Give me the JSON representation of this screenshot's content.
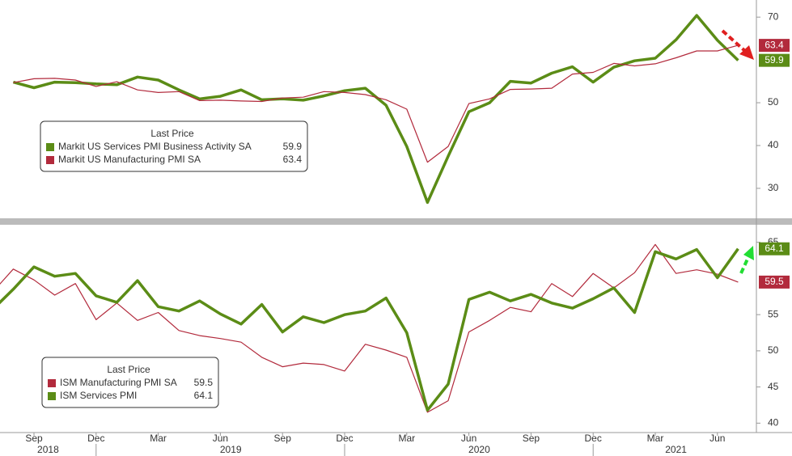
{
  "chart_data": [
    {
      "type": "line",
      "legend_title": "Last Price",
      "x": [
        "2018-07",
        "2018-08",
        "2018-09",
        "2018-10",
        "2018-11",
        "2018-12",
        "2019-01",
        "2019-02",
        "2019-03",
        "2019-04",
        "2019-05",
        "2019-06",
        "2019-07",
        "2019-08",
        "2019-09",
        "2019-10",
        "2019-11",
        "2019-12",
        "2020-01",
        "2020-02",
        "2020-03",
        "2020-04",
        "2020-05",
        "2020-06",
        "2020-07",
        "2020-08",
        "2020-09",
        "2020-10",
        "2020-11",
        "2020-12",
        "2021-01",
        "2021-02",
        "2021-03",
        "2021-04",
        "2021-05",
        "2021-06",
        "2021-07"
      ],
      "series": [
        {
          "name": "Markit US Services PMI Business Activity SA",
          "color": "#5b8c16",
          "width": 3.5,
          "values": [
            null,
            54.8,
            53.5,
            54.8,
            54.7,
            54.4,
            54.2,
            56.0,
            55.3,
            53.0,
            50.9,
            51.5,
            53.0,
            50.7,
            50.9,
            50.6,
            51.6,
            52.8,
            53.4,
            49.4,
            39.8,
            26.7,
            37.5,
            47.9,
            50.0,
            55.0,
            54.6,
            56.9,
            58.4,
            54.8,
            58.3,
            59.8,
            60.4,
            64.7,
            70.4,
            64.6,
            59.9
          ]
        },
        {
          "name": "Markit US Manufacturing PMI SA",
          "color": "#b22a3c",
          "width": 1.2,
          "values": [
            null,
            54.7,
            55.6,
            55.7,
            55.3,
            53.8,
            54.9,
            53.0,
            52.4,
            52.6,
            50.5,
            50.6,
            50.4,
            50.3,
            51.1,
            51.3,
            52.6,
            52.4,
            51.9,
            50.7,
            48.5,
            36.1,
            39.8,
            49.8,
            50.9,
            53.1,
            53.2,
            53.4,
            56.7,
            57.1,
            59.2,
            58.6,
            59.1,
            60.5,
            62.1,
            62.1,
            63.4
          ]
        }
      ],
      "ylim": [
        23,
        74
      ],
      "yticks": [
        30,
        40,
        50,
        70
      ]
    },
    {
      "type": "line",
      "legend_title": "Last Price",
      "x": [
        "2018-07",
        "2018-08",
        "2018-09",
        "2018-10",
        "2018-11",
        "2018-12",
        "2019-01",
        "2019-02",
        "2019-03",
        "2019-04",
        "2019-05",
        "2019-06",
        "2019-07",
        "2019-08",
        "2019-09",
        "2019-10",
        "2019-11",
        "2019-12",
        "2020-01",
        "2020-02",
        "2020-03",
        "2020-04",
        "2020-05",
        "2020-06",
        "2020-07",
        "2020-08",
        "2020-09",
        "2020-10",
        "2020-11",
        "2020-12",
        "2021-01",
        "2021-02",
        "2021-03",
        "2021-04",
        "2021-05",
        "2021-06",
        "2021-07"
      ],
      "series": [
        {
          "name": "ISM Manufacturing PMI SA",
          "color": "#b22a3c",
          "width": 1.2,
          "values": [
            58.1,
            61.3,
            59.8,
            57.7,
            59.3,
            54.3,
            56.6,
            54.2,
            55.3,
            52.8,
            52.1,
            51.7,
            51.2,
            49.1,
            47.8,
            48.3,
            48.1,
            47.2,
            50.9,
            50.1,
            49.1,
            41.5,
            43.1,
            52.6,
            54.2,
            56.0,
            55.4,
            59.3,
            57.5,
            60.7,
            58.7,
            60.8,
            64.7,
            60.7,
            61.2,
            60.6,
            59.5
          ]
        },
        {
          "name": "ISM Services PMI",
          "color": "#5b8c16",
          "width": 3.5,
          "values": [
            55.7,
            58.5,
            61.6,
            60.3,
            60.7,
            57.6,
            56.7,
            59.7,
            56.1,
            55.5,
            56.9,
            55.1,
            53.7,
            56.4,
            52.6,
            54.7,
            53.9,
            55.0,
            55.5,
            57.3,
            52.5,
            41.8,
            45.4,
            57.1,
            58.1,
            56.9,
            57.8,
            56.6,
            55.9,
            57.2,
            58.7,
            55.3,
            63.7,
            62.7,
            64.0,
            60.1,
            64.1
          ]
        }
      ],
      "ylim": [
        38.7,
        67.2
      ],
      "yticks": [
        40,
        45,
        50,
        55,
        65
      ],
      "xticks": [
        {
          "value": "2018-09",
          "label": "Sep"
        },
        {
          "value": "2018-12",
          "label": "Dec"
        },
        {
          "value": "2019-03",
          "label": "Mar"
        },
        {
          "value": "2019-06",
          "label": "Jun"
        },
        {
          "value": "2019-09",
          "label": "Sep"
        },
        {
          "value": "2019-12",
          "label": "Dec"
        },
        {
          "value": "2020-03",
          "label": "Mar"
        },
        {
          "value": "2020-06",
          "label": "Jun"
        },
        {
          "value": "2020-09",
          "label": "Sep"
        },
        {
          "value": "2020-12",
          "label": "Dec"
        },
        {
          "value": "2021-03",
          "label": "Mar"
        },
        {
          "value": "2021-06",
          "label": "Jun"
        }
      ],
      "years": [
        2018,
        2019,
        2020,
        2021
      ]
    }
  ]
}
